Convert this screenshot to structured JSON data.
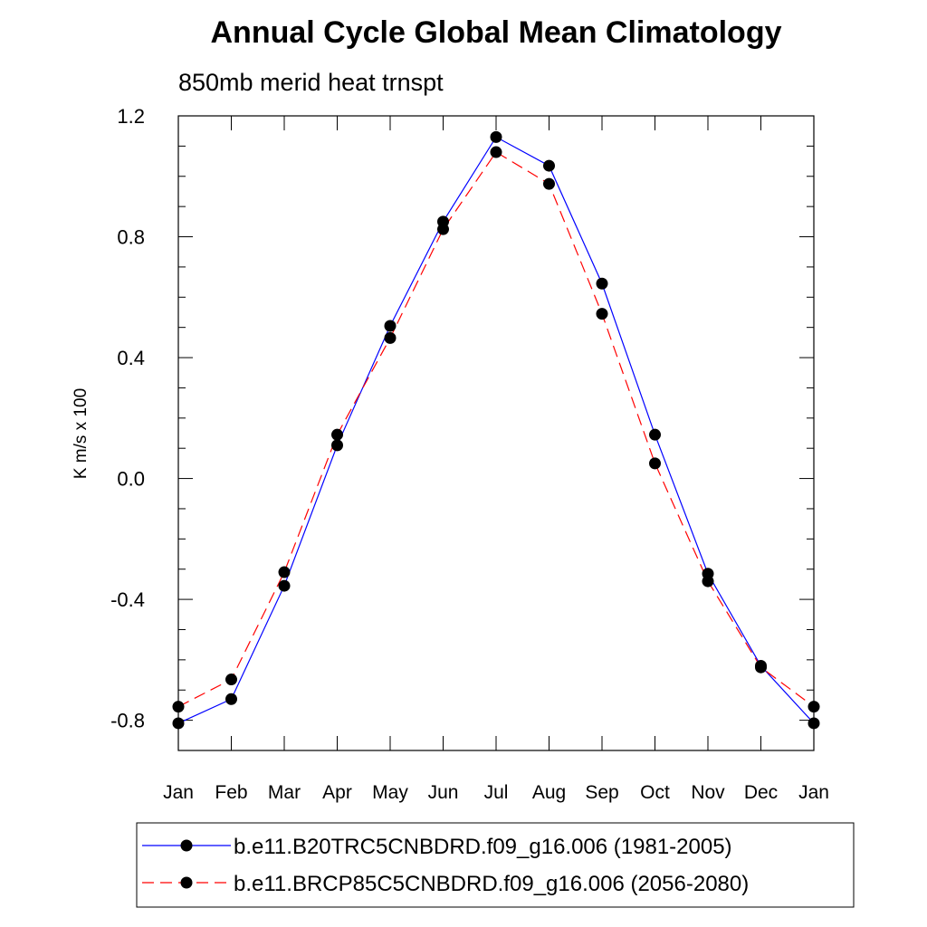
{
  "chart_data": {
    "type": "line",
    "title": "Annual Cycle Global Mean Climatology",
    "subtitle": "850mb merid heat trnspt",
    "xlabel": "",
    "ylabel": "K m/s x 100",
    "categories": [
      "Jan",
      "Feb",
      "Mar",
      "Apr",
      "May",
      "Jun",
      "Jul",
      "Aug",
      "Sep",
      "Oct",
      "Nov",
      "Dec",
      "Jan"
    ],
    "yticks": [
      "1.2",
      "0.8",
      "0.4",
      "0.0",
      "-0.4",
      "-0.8"
    ],
    "ylim": [
      -0.9,
      1.2
    ],
    "grid": false,
    "legend_position": "bottom",
    "series": [
      {
        "name": "b.e11.B20TRC5CNBDRD.f09_g16.006 (1981-2005)",
        "color": "#0000ff",
        "line_style": "solid",
        "marker": "circle",
        "values": [
          -0.81,
          -0.73,
          -0.355,
          0.11,
          0.505,
          0.85,
          1.13,
          1.035,
          0.645,
          0.145,
          -0.315,
          -0.62,
          -0.81
        ]
      },
      {
        "name": "b.e11.BRCP85C5CNBDRD.f09_g16.006 (2056-2080)",
        "color": "#ff0000",
        "line_style": "dashed",
        "marker": "circle",
        "values": [
          -0.755,
          -0.665,
          -0.31,
          0.145,
          0.465,
          0.825,
          1.08,
          0.975,
          0.545,
          0.05,
          -0.34,
          -0.625,
          -0.755
        ]
      }
    ]
  }
}
